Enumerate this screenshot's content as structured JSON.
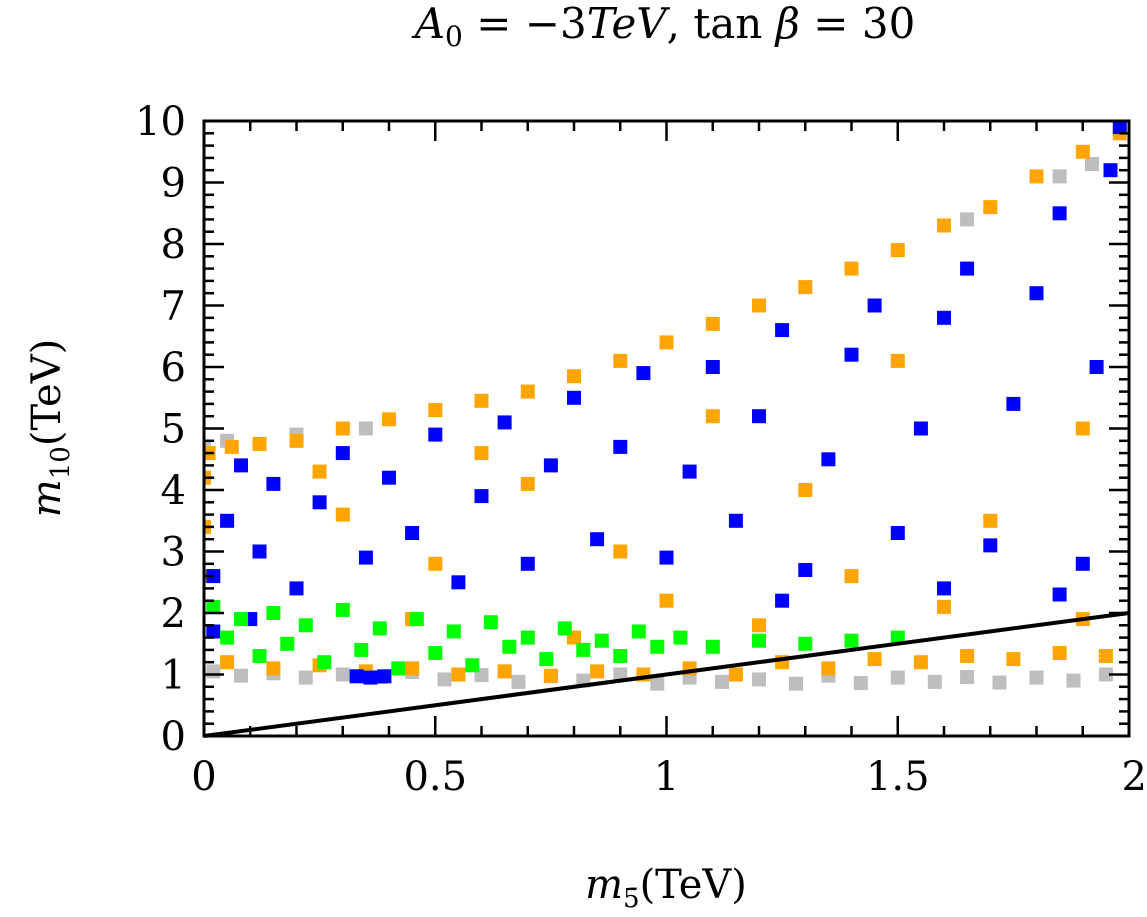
{
  "chart_data": {
    "type": "scatter",
    "title": "A₀ = −3TeV, tan β = 30",
    "title_parts": {
      "a_sym": "A",
      "a_sub": "0",
      "a_rest": " = −3",
      "tev": "TeV",
      "comma": ", tan ",
      "beta": "β",
      "tail": " = 30"
    },
    "xlabel": "m5̄(TeV)",
    "xlabel_parts": {
      "sym": "m",
      "sub": "5̄",
      "unit": "(TeV)"
    },
    "ylabel": "m10(TeV)",
    "ylabel_parts": {
      "sym": "m",
      "sub": "10",
      "unit": "(TeV)"
    },
    "xlim": [
      0,
      2
    ],
    "ylim": [
      0,
      10
    ],
    "xticks": [
      0,
      0.5,
      1,
      1.5,
      2
    ],
    "xtick_labels": [
      "0",
      "0.5",
      "1",
      "1.5",
      "2"
    ],
    "yticks": [
      0,
      1,
      2,
      3,
      4,
      5,
      6,
      7,
      8,
      9,
      10
    ],
    "ytick_labels": [
      "0",
      "1",
      "2",
      "3",
      "4",
      "5",
      "6",
      "7",
      "8",
      "9",
      "10"
    ],
    "grid": false,
    "legend": "none",
    "reference_line": {
      "label": "m10 = m5̄",
      "x": [
        0,
        2
      ],
      "y": [
        0,
        2
      ],
      "color": "#000000"
    },
    "series": [
      {
        "name": "gray",
        "color": "#bebebe",
        "points": [
          [
            0.02,
            1.05
          ],
          [
            0.08,
            0.98
          ],
          [
            0.15,
            1.02
          ],
          [
            0.22,
            0.95
          ],
          [
            0.3,
            1.0
          ],
          [
            0.38,
            0.96
          ],
          [
            0.45,
            1.04
          ],
          [
            0.52,
            0.92
          ],
          [
            0.6,
            0.99
          ],
          [
            0.68,
            0.88
          ],
          [
            0.75,
            0.97
          ],
          [
            0.82,
            0.9
          ],
          [
            0.9,
            1.0
          ],
          [
            0.98,
            0.85
          ],
          [
            1.05,
            0.95
          ],
          [
            1.12,
            0.88
          ],
          [
            1.2,
            0.92
          ],
          [
            1.28,
            0.85
          ],
          [
            1.35,
            0.98
          ],
          [
            1.42,
            0.86
          ],
          [
            1.5,
            0.95
          ],
          [
            1.58,
            0.88
          ],
          [
            1.65,
            0.96
          ],
          [
            1.72,
            0.87
          ],
          [
            1.8,
            0.95
          ],
          [
            1.88,
            0.9
          ],
          [
            1.95,
            1.0
          ],
          [
            0.0,
            4.7
          ],
          [
            0.05,
            4.8
          ],
          [
            0.2,
            4.9
          ],
          [
            0.35,
            5.0
          ],
          [
            1.65,
            8.4
          ],
          [
            1.85,
            9.1
          ],
          [
            1.92,
            9.3
          ]
        ]
      },
      {
        "name": "orange",
        "color": "#ffa500",
        "points": [
          [
            0.01,
            4.6
          ],
          [
            0.06,
            4.7
          ],
          [
            0.12,
            4.75
          ],
          [
            0.2,
            4.8
          ],
          [
            0.3,
            5.0
          ],
          [
            0.4,
            5.15
          ],
          [
            0.5,
            5.3
          ],
          [
            0.6,
            5.45
          ],
          [
            0.7,
            5.6
          ],
          [
            0.8,
            5.85
          ],
          [
            0.9,
            6.1
          ],
          [
            1.0,
            6.4
          ],
          [
            1.1,
            6.7
          ],
          [
            1.2,
            7.0
          ],
          [
            1.3,
            7.3
          ],
          [
            1.4,
            7.6
          ],
          [
            1.5,
            7.9
          ],
          [
            1.6,
            8.3
          ],
          [
            1.7,
            8.6
          ],
          [
            1.8,
            9.1
          ],
          [
            1.9,
            9.5
          ],
          [
            1.98,
            9.8
          ],
          [
            0.05,
            1.2
          ],
          [
            0.15,
            1.1
          ],
          [
            0.25,
            1.15
          ],
          [
            0.35,
            1.05
          ],
          [
            0.45,
            1.1
          ],
          [
            0.55,
            1.0
          ],
          [
            0.65,
            1.05
          ],
          [
            0.75,
            0.98
          ],
          [
            0.85,
            1.05
          ],
          [
            0.95,
            1.0
          ],
          [
            1.05,
            1.1
          ],
          [
            1.15,
            1.0
          ],
          [
            1.25,
            1.2
          ],
          [
            1.35,
            1.1
          ],
          [
            1.45,
            1.25
          ],
          [
            1.55,
            1.2
          ],
          [
            1.65,
            1.3
          ],
          [
            1.75,
            1.25
          ],
          [
            1.85,
            1.35
          ],
          [
            1.95,
            1.3
          ],
          [
            0.0,
            2.6
          ],
          [
            0.0,
            3.4
          ],
          [
            0.0,
            4.2
          ],
          [
            0.3,
            3.6
          ],
          [
            0.5,
            2.8
          ],
          [
            0.7,
            4.1
          ],
          [
            0.9,
            3.0
          ],
          [
            1.1,
            5.2
          ],
          [
            1.3,
            4.0
          ],
          [
            1.5,
            6.1
          ],
          [
            1.7,
            3.5
          ],
          [
            1.9,
            5.0
          ],
          [
            0.25,
            4.3
          ],
          [
            0.6,
            4.6
          ],
          [
            1.0,
            2.2
          ],
          [
            1.4,
            2.6
          ],
          [
            1.8,
            7.2
          ],
          [
            0.45,
            1.9
          ],
          [
            0.8,
            1.6
          ],
          [
            1.2,
            1.8
          ],
          [
            1.6,
            2.1
          ],
          [
            1.9,
            1.9
          ]
        ]
      },
      {
        "name": "blue",
        "color": "#0000ff",
        "points": [
          [
            0.02,
            2.6
          ],
          [
            0.05,
            3.5
          ],
          [
            0.08,
            4.4
          ],
          [
            0.12,
            3.0
          ],
          [
            0.15,
            4.1
          ],
          [
            0.2,
            2.4
          ],
          [
            0.25,
            3.8
          ],
          [
            0.3,
            4.6
          ],
          [
            0.35,
            2.9
          ],
          [
            0.4,
            4.2
          ],
          [
            0.45,
            3.3
          ],
          [
            0.5,
            4.9
          ],
          [
            0.55,
            2.5
          ],
          [
            0.6,
            3.9
          ],
          [
            0.65,
            5.1
          ],
          [
            0.7,
            2.8
          ],
          [
            0.75,
            4.4
          ],
          [
            0.8,
            5.5
          ],
          [
            0.85,
            3.2
          ],
          [
            0.9,
            4.7
          ],
          [
            0.95,
            5.9
          ],
          [
            1.0,
            2.9
          ],
          [
            1.05,
            4.3
          ],
          [
            1.1,
            6.0
          ],
          [
            1.15,
            3.5
          ],
          [
            1.2,
            5.2
          ],
          [
            1.25,
            6.6
          ],
          [
            1.3,
            2.7
          ],
          [
            1.35,
            4.5
          ],
          [
            1.4,
            6.2
          ],
          [
            1.45,
            7.0
          ],
          [
            1.5,
            3.3
          ],
          [
            1.55,
            5.0
          ],
          [
            1.6,
            6.8
          ],
          [
            1.65,
            7.6
          ],
          [
            1.7,
            3.1
          ],
          [
            1.75,
            5.4
          ],
          [
            1.8,
            7.2
          ],
          [
            1.85,
            8.5
          ],
          [
            1.9,
            2.8
          ],
          [
            1.93,
            6.0
          ],
          [
            1.96,
            9.2
          ],
          [
            1.98,
            9.9
          ],
          [
            0.33,
            0.97
          ],
          [
            0.36,
            0.95
          ],
          [
            0.39,
            0.97
          ],
          [
            1.25,
            2.2
          ],
          [
            1.6,
            2.4
          ],
          [
            1.85,
            2.3
          ],
          [
            0.1,
            1.9
          ],
          [
            0.02,
            1.7
          ]
        ]
      },
      {
        "name": "green",
        "color": "#00ff00",
        "points": [
          [
            0.02,
            2.1
          ],
          [
            0.05,
            1.6
          ],
          [
            0.08,
            1.9
          ],
          [
            0.12,
            1.3
          ],
          [
            0.15,
            2.0
          ],
          [
            0.18,
            1.5
          ],
          [
            0.22,
            1.8
          ],
          [
            0.26,
            1.2
          ],
          [
            0.3,
            2.05
          ],
          [
            0.34,
            1.4
          ],
          [
            0.38,
            1.75
          ],
          [
            0.42,
            1.1
          ],
          [
            0.46,
            1.9
          ],
          [
            0.5,
            1.35
          ],
          [
            0.54,
            1.7
          ],
          [
            0.58,
            1.15
          ],
          [
            0.62,
            1.85
          ],
          [
            0.66,
            1.45
          ],
          [
            0.7,
            1.6
          ],
          [
            0.74,
            1.25
          ],
          [
            0.78,
            1.75
          ],
          [
            0.82,
            1.4
          ],
          [
            0.86,
            1.55
          ],
          [
            0.9,
            1.3
          ],
          [
            0.94,
            1.7
          ],
          [
            0.98,
            1.45
          ],
          [
            1.03,
            1.6
          ],
          [
            1.1,
            1.45
          ],
          [
            1.2,
            1.55
          ],
          [
            1.3,
            1.5
          ],
          [
            1.4,
            1.55
          ],
          [
            1.5,
            1.6
          ]
        ]
      }
    ]
  }
}
